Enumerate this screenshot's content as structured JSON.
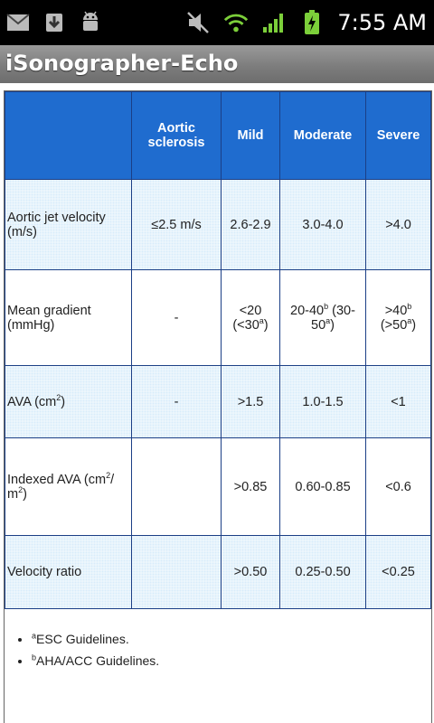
{
  "status_bar": {
    "time": "7:55 AM",
    "icons": [
      "mail-icon",
      "download-icon",
      "android-debug-icon",
      "mute-icon",
      "wifi-icon",
      "signal-icon",
      "battery-charging-icon"
    ]
  },
  "app": {
    "title": "iSonographer-Echo"
  },
  "table": {
    "headers": [
      "",
      "Aortic sclerosis",
      "Mild",
      "Moderate",
      "Severe"
    ],
    "rows": [
      {
        "label": "Aortic jet velocity (m/s)",
        "aortic_sclerosis": "≤2.5 m/s",
        "mild": "2.6-2.9",
        "moderate": "3.0-4.0",
        "severe": ">4.0"
      },
      {
        "label": "Mean gradient (mmHg)",
        "aortic_sclerosis": "-",
        "mild_main": "<20 (<30",
        "mild_sup": "a",
        "mild_tail": ")",
        "moderate_pre": "20-40",
        "moderate_sup1": "b",
        "moderate_mid": " (30-50",
        "moderate_sup2": "a",
        "moderate_tail": ")",
        "severe_pre": ">40",
        "severe_sup1": "b",
        "severe_mid": " (>50",
        "severe_sup2": "a",
        "severe_tail": ")"
      },
      {
        "label_pre": "AVA (cm",
        "label_sup": "2",
        "label_tail": ")",
        "aortic_sclerosis": "-",
        "mild": ">1.5",
        "moderate": "1.0-1.5",
        "severe": "<1"
      },
      {
        "label_pre": "Indexed AVA (cm",
        "label_sup": "2",
        "label_mid": "/ m",
        "label_sup2": "2",
        "label_tail": ")",
        "aortic_sclerosis": "",
        "mild": ">0.85",
        "moderate": "0.60-0.85",
        "severe": "<0.6"
      },
      {
        "label": "Velocity ratio",
        "aortic_sclerosis": "",
        "mild": ">0.50",
        "moderate": "0.25-0.50",
        "severe": "<0.25"
      }
    ]
  },
  "notes": [
    {
      "sup": "a",
      "text": "ESC Guidelines."
    },
    {
      "sup": "b",
      "text": "AHA/ACC Guidelines."
    }
  ],
  "colors": {
    "header_blue": "#1f6ccf",
    "row_blue": "#d8ecfa",
    "border": "#1b3f86"
  }
}
